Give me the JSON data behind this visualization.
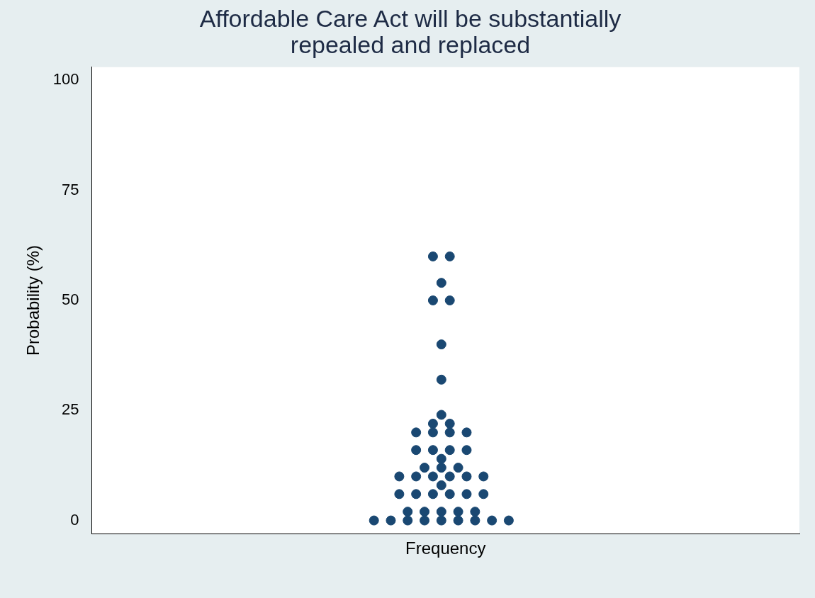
{
  "chart_data": {
    "type": "scatter",
    "title": "Affordable Care Act will be substantially\nrepealed and replaced",
    "xlabel": "Frequency",
    "ylabel": "Probability (%)",
    "categories": [
      null,
      null,
      null,
      null,
      null,
      null,
      null,
      null,
      null,
      null,
      null,
      null,
      null,
      null,
      null,
      null,
      null,
      null,
      null,
      null,
      null,
      null,
      null,
      null,
      null,
      null,
      null,
      null,
      null,
      null,
      null,
      null,
      null,
      null,
      null,
      null,
      null,
      null,
      null,
      null,
      null,
      null,
      null,
      null,
      null,
      null,
      null,
      null,
      null,
      null,
      null,
      null,
      null,
      null,
      null,
      null,
      null,
      null,
      null,
      null,
      null,
      null,
      null,
      null,
      null,
      null,
      null,
      null,
      null,
      null,
      null,
      null,
      null,
      null,
      null,
      null,
      null,
      null,
      null,
      null,
      null,
      null,
      null,
      null
    ],
    "series": [
      {
        "color": "#1a4872",
        "values": [
          null,
          null,
          null,
          null,
          null,
          null,
          null,
          null,
          null,
          null,
          null,
          null,
          null,
          null,
          null,
          null,
          null,
          null,
          null,
          null,
          null,
          null,
          null,
          null,
          null,
          null,
          null,
          null,
          null,
          null,
          null,
          null,
          null,
          0,
          null,
          0,
          6,
          0,
          6,
          0,
          6,
          0,
          6,
          0,
          6,
          0,
          6,
          0,
          null,
          0,
          null,
          null,
          null,
          null,
          null,
          null,
          null,
          null,
          null,
          null,
          null,
          null,
          null,
          null,
          null,
          null,
          null,
          null,
          null,
          null,
          null,
          null,
          null,
          null,
          null,
          null,
          null,
          null,
          null,
          null,
          null,
          null,
          null,
          null
        ]
      },
      {
        "color": "#1a4872",
        "values": [
          null,
          null,
          null,
          null,
          null,
          null,
          null,
          null,
          null,
          null,
          null,
          null,
          null,
          null,
          null,
          null,
          null,
          null,
          null,
          null,
          null,
          null,
          null,
          null,
          null,
          null,
          null,
          null,
          null,
          null,
          null,
          null,
          null,
          null,
          null,
          null,
          10,
          2,
          10,
          2,
          10,
          2,
          10,
          2,
          10,
          2,
          10,
          null,
          null,
          null,
          null,
          null,
          null,
          null,
          null,
          null,
          null,
          null,
          null,
          null,
          null,
          null,
          null,
          null,
          null,
          null,
          null,
          null,
          null,
          null,
          null,
          null,
          null,
          null,
          null,
          null,
          null,
          null,
          null,
          null,
          null,
          null,
          null,
          null
        ]
      },
      {
        "color": "#1a4872",
        "values": [
          null,
          null,
          null,
          null,
          null,
          null,
          null,
          null,
          null,
          null,
          null,
          null,
          null,
          null,
          null,
          null,
          null,
          null,
          null,
          null,
          null,
          null,
          null,
          null,
          null,
          null,
          null,
          null,
          null,
          null,
          null,
          null,
          null,
          null,
          null,
          null,
          null,
          null,
          16,
          12,
          16,
          8,
          16,
          12,
          16,
          null,
          null,
          null,
          null,
          null,
          null,
          null,
          null,
          null,
          null,
          null,
          null,
          null,
          null,
          null,
          null,
          null,
          null,
          null,
          null,
          null,
          null,
          null,
          null,
          null,
          null,
          null,
          null,
          null,
          null,
          null,
          null,
          null,
          null,
          null,
          null,
          null,
          null,
          null
        ]
      },
      {
        "color": "#1a4872",
        "values": [
          null,
          null,
          null,
          null,
          null,
          null,
          null,
          null,
          null,
          null,
          null,
          null,
          null,
          null,
          null,
          null,
          null,
          null,
          null,
          null,
          null,
          null,
          null,
          null,
          null,
          null,
          null,
          null,
          null,
          null,
          null,
          null,
          null,
          null,
          null,
          null,
          null,
          null,
          20,
          null,
          20,
          12,
          20,
          null,
          20,
          null,
          null,
          null,
          null,
          null,
          null,
          null,
          null,
          null,
          null,
          null,
          null,
          null,
          null,
          null,
          null,
          null,
          null,
          null,
          null,
          null,
          null,
          null,
          null,
          null,
          null,
          null,
          null,
          null,
          null,
          null,
          null,
          null,
          null,
          null,
          null,
          null,
          null,
          null
        ]
      },
      {
        "color": "#1a4872",
        "values": [
          null,
          null,
          null,
          null,
          null,
          null,
          null,
          null,
          null,
          null,
          null,
          null,
          null,
          null,
          null,
          null,
          null,
          null,
          null,
          null,
          null,
          null,
          null,
          null,
          null,
          null,
          null,
          null,
          null,
          null,
          null,
          null,
          null,
          null,
          null,
          null,
          null,
          null,
          null,
          null,
          22,
          14,
          22,
          null,
          null,
          null,
          null,
          null,
          null,
          null,
          null,
          null,
          null,
          null,
          null,
          null,
          null,
          null,
          null,
          null,
          null,
          null,
          null,
          null,
          null,
          null,
          null,
          null,
          null,
          null,
          null,
          null,
          null,
          null,
          null,
          null,
          null,
          null,
          null,
          null,
          null,
          null,
          null,
          null
        ]
      },
      {
        "color": "#1a4872",
        "values": [
          null,
          null,
          null,
          null,
          null,
          null,
          null,
          null,
          null,
          null,
          null,
          null,
          null,
          null,
          null,
          null,
          null,
          null,
          null,
          null,
          null,
          null,
          null,
          null,
          null,
          null,
          null,
          null,
          null,
          null,
          null,
          null,
          null,
          null,
          null,
          null,
          null,
          null,
          null,
          null,
          50,
          24,
          50,
          null,
          null,
          null,
          null,
          null,
          null,
          null,
          null,
          null,
          null,
          null,
          null,
          null,
          null,
          null,
          null,
          null,
          null,
          null,
          null,
          null,
          null,
          null,
          null,
          null,
          null,
          null,
          null,
          null,
          null,
          null,
          null,
          null,
          null,
          null,
          null,
          null,
          null,
          null,
          null,
          null
        ]
      },
      {
        "color": "#1a4872",
        "values": [
          null,
          null,
          null,
          null,
          null,
          null,
          null,
          null,
          null,
          null,
          null,
          null,
          null,
          null,
          null,
          null,
          null,
          null,
          null,
          null,
          null,
          null,
          null,
          null,
          null,
          null,
          null,
          null,
          null,
          null,
          null,
          null,
          null,
          null,
          null,
          null,
          null,
          null,
          null,
          null,
          60,
          32,
          60,
          null,
          null,
          null,
          null,
          null,
          null,
          null,
          null,
          null,
          null,
          null,
          null,
          null,
          null,
          null,
          null,
          null,
          null,
          null,
          null,
          null,
          null,
          null,
          null,
          null,
          null,
          null,
          null,
          null,
          null,
          null,
          null,
          null,
          null,
          null,
          null,
          null,
          null,
          null,
          null,
          null
        ]
      },
      {
        "color": "#1a4872",
        "values": [
          null,
          null,
          null,
          null,
          null,
          null,
          null,
          null,
          null,
          null,
          null,
          null,
          null,
          null,
          null,
          null,
          null,
          null,
          null,
          null,
          null,
          null,
          null,
          null,
          null,
          null,
          null,
          null,
          null,
          null,
          null,
          null,
          null,
          null,
          null,
          null,
          null,
          null,
          null,
          null,
          null,
          40,
          null,
          null,
          null,
          null,
          null,
          null,
          null,
          null,
          null,
          null,
          null,
          null,
          null,
          null,
          null,
          null,
          null,
          null,
          null,
          null,
          null,
          null,
          null,
          null,
          null,
          null,
          null,
          null,
          null,
          null,
          null,
          null,
          null,
          null,
          null,
          null,
          null,
          null,
          null,
          null,
          null,
          null
        ]
      },
      {
        "color": "#1a4872",
        "values": [
          null,
          null,
          null,
          null,
          null,
          null,
          null,
          null,
          null,
          null,
          null,
          null,
          null,
          null,
          null,
          null,
          null,
          null,
          null,
          null,
          null,
          null,
          null,
          null,
          null,
          null,
          null,
          null,
          null,
          null,
          null,
          null,
          null,
          null,
          null,
          null,
          null,
          null,
          null,
          null,
          null,
          54,
          null,
          null,
          null,
          null,
          null,
          null,
          null,
          null,
          null,
          null,
          null,
          null,
          null,
          null,
          null,
          null,
          null,
          null,
          null,
          null,
          null,
          null,
          null,
          null,
          null,
          null,
          null,
          null,
          null,
          null,
          null,
          null,
          null,
          null,
          null,
          null,
          null,
          null,
          null,
          null,
          null,
          null
        ]
      }
    ],
    "ylim": [
      -3,
      103
    ],
    "yticks": [
      0,
      25,
      50,
      75,
      100
    ],
    "tick_labels": "y",
    "grid": false,
    "legend": false,
    "marker": "circle"
  }
}
